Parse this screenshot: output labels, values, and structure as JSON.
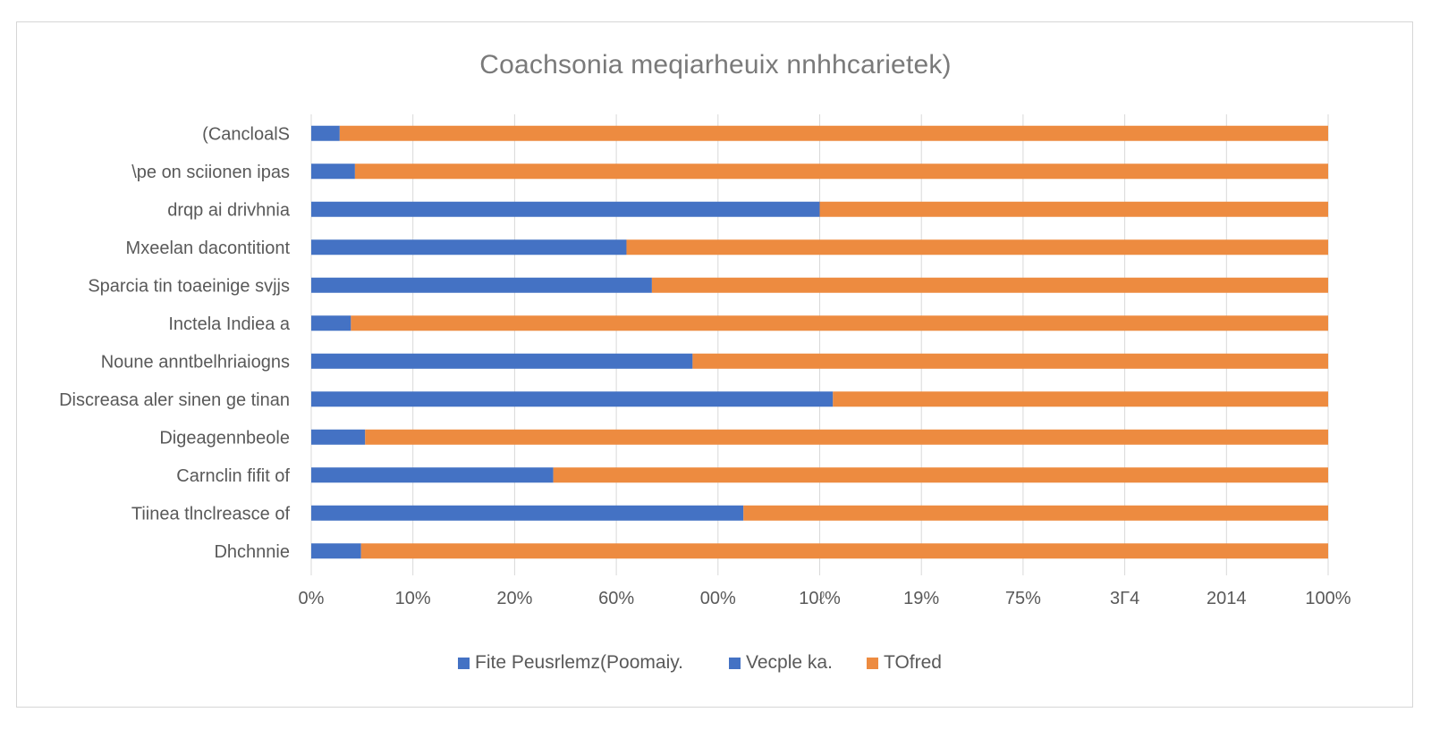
{
  "chart_data": {
    "type": "bar",
    "orientation": "horizontal",
    "stacked": true,
    "title": "Coachsonia meqiarheuix nnhhcarietek)",
    "categories": [
      "(CancloalS",
      "\\pe on sciionen ipas",
      "drqp ai drivhnia",
      "Mxeelan dacontitiont",
      "Sparcia tin toaeinige svjjs",
      "Inctela Indiea a",
      "Noune anntbelhriaiogns",
      "Discreasa aler sinen ge tinan",
      "Digeagennbeole",
      "Carnclin fifit of",
      "Tiinea tlnclreasce of",
      "Dhchnnie"
    ],
    "series": [
      {
        "name": "Fite Peusrlemz(Poomaiy.",
        "color": "#4472c4",
        "values": [
          2.8,
          4.3,
          50,
          31,
          33.5,
          3.9,
          37.5,
          51.3,
          5.3,
          23.8,
          42.5,
          4.9
        ]
      },
      {
        "name": "Vecple ka.",
        "color": "#4472c4",
        "values": [
          0,
          0,
          0,
          0,
          0,
          0,
          0,
          0,
          0,
          0,
          0,
          0
        ]
      },
      {
        "name": "TOfred",
        "color": "#ed8b40",
        "values": [
          97.2,
          95.7,
          50,
          69,
          66.5,
          96.1,
          62.5,
          48.7,
          94.7,
          76.2,
          57.5,
          95.1
        ]
      }
    ],
    "x_tick_labels": [
      "0%",
      "10%",
      "20%",
      "60%",
      "00%",
      "10ℓ%",
      "19%",
      "75%",
      "3Γ4",
      "2014",
      "100%"
    ],
    "xlim": [
      0,
      100
    ],
    "xlabel": "",
    "ylabel": "",
    "grid": true,
    "legend_position": "bottom"
  },
  "colors": {
    "title": "#7a7a7a",
    "axis_text": "#595959",
    "grid": "#d9d9d9"
  }
}
